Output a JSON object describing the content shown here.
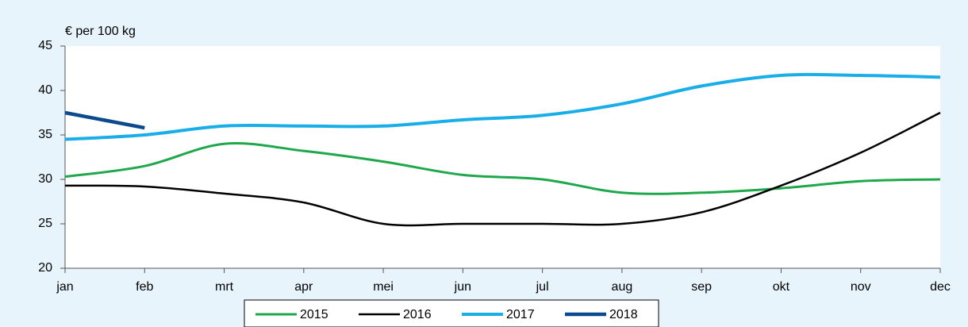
{
  "chart_data": {
    "type": "line",
    "y_label": "€ per 100 kg",
    "categories": [
      "jan",
      "feb",
      "mrt",
      "apr",
      "mei",
      "jun",
      "jul",
      "aug",
      "sep",
      "okt",
      "nov",
      "dec"
    ],
    "series": [
      {
        "name": "2015",
        "color": "#1ea84b",
        "values": [
          30.3,
          31.5,
          34,
          33.2,
          32,
          30.5,
          30,
          28.5,
          28.5,
          29,
          29.8,
          30
        ]
      },
      {
        "name": "2016",
        "color": "#000000",
        "values": [
          29.3,
          29.2,
          28.4,
          27.4,
          25,
          25,
          25,
          25,
          26.3,
          29.3,
          33,
          37.5
        ]
      },
      {
        "name": "2017",
        "color": "#1aaee8",
        "values": [
          34.5,
          35,
          36,
          36,
          36,
          36.7,
          37.2,
          38.5,
          40.5,
          41.7,
          41.7,
          41.5
        ]
      },
      {
        "name": "2018",
        "color": "#0b4a8c",
        "values": [
          37.5,
          35.8,
          null,
          null,
          null,
          null,
          null,
          null,
          null,
          null,
          null,
          null
        ]
      }
    ],
    "ylim": [
      20,
      45
    ],
    "yticks": [
      20,
      25,
      30,
      35,
      40,
      45
    ],
    "legend": "bottom"
  }
}
